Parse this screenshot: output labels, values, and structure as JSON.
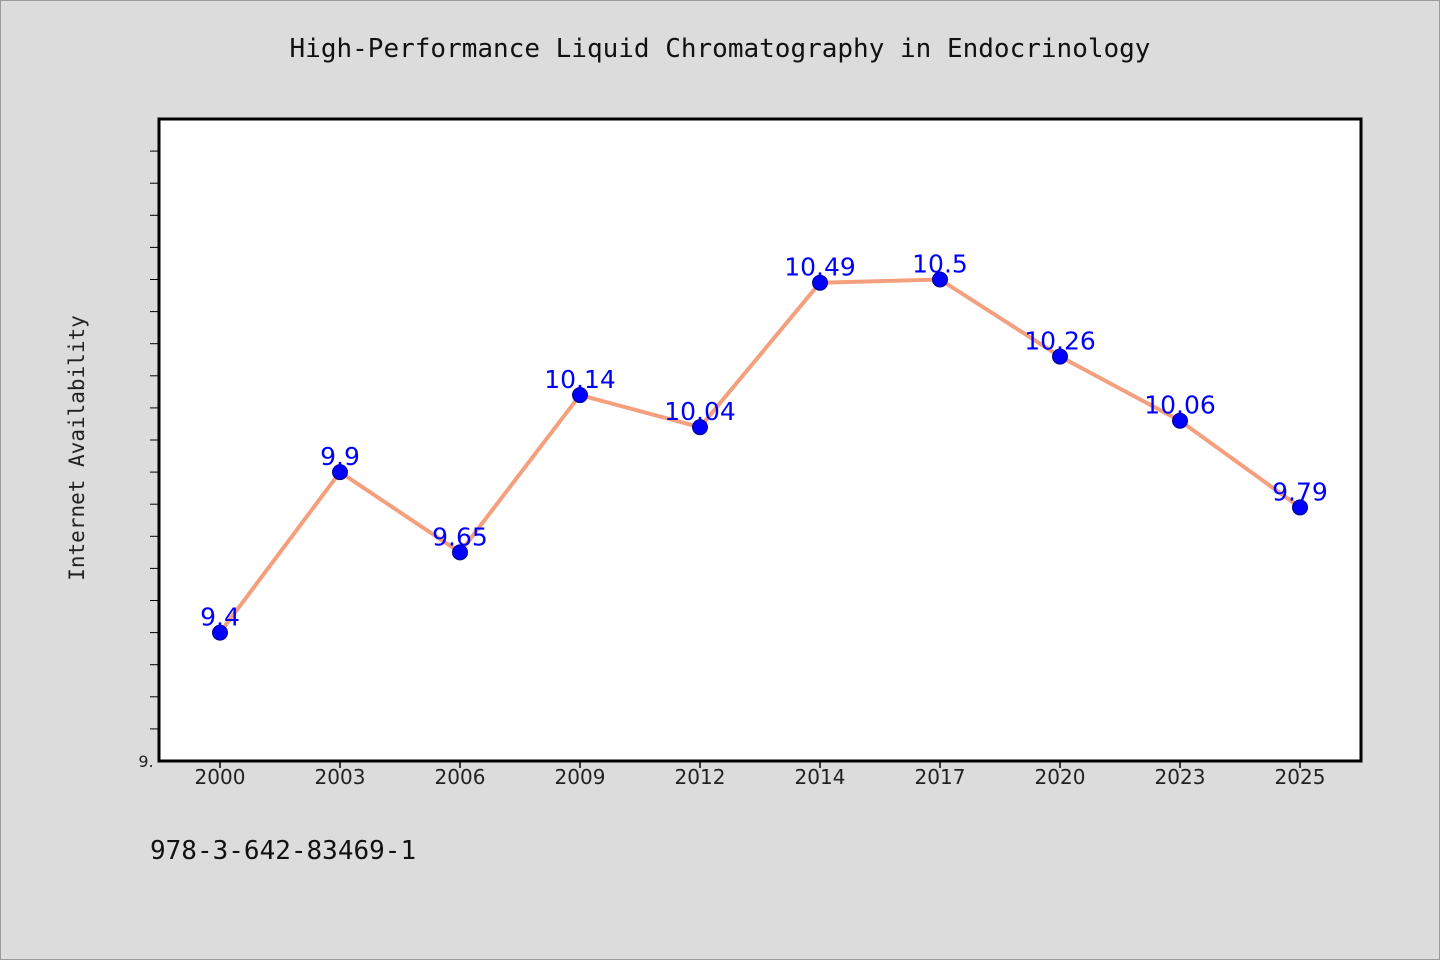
{
  "chart_data": {
    "type": "line",
    "title": "High-Performance Liquid Chromatography in Endocrinology",
    "xlabel": "",
    "ylabel": "Internet Availability",
    "categories": [
      "2000",
      "2003",
      "2006",
      "2009",
      "2012",
      "2014",
      "2017",
      "2020",
      "2023",
      "2025"
    ],
    "series": [
      {
        "values": [
          9.4,
          9.9,
          9.65,
          10.14,
          10.04,
          10.49,
          10.5,
          10.26,
          10.06,
          9.79
        ],
        "data_labels": [
          "9.4",
          "9.9",
          "9.65",
          "10.14",
          "10.04",
          "10.49",
          "10.5",
          "10.26",
          "10.06",
          "9.79"
        ]
      }
    ],
    "ylim": [
      9.0,
      11.0
    ],
    "y_tick_labels": [
      "9."
    ],
    "grid": false,
    "line_color": "#f4a07e",
    "marker_color": "#0000ff",
    "label_color": "#0000ff"
  },
  "footer": {
    "code": "978-3-642-83469-1"
  }
}
